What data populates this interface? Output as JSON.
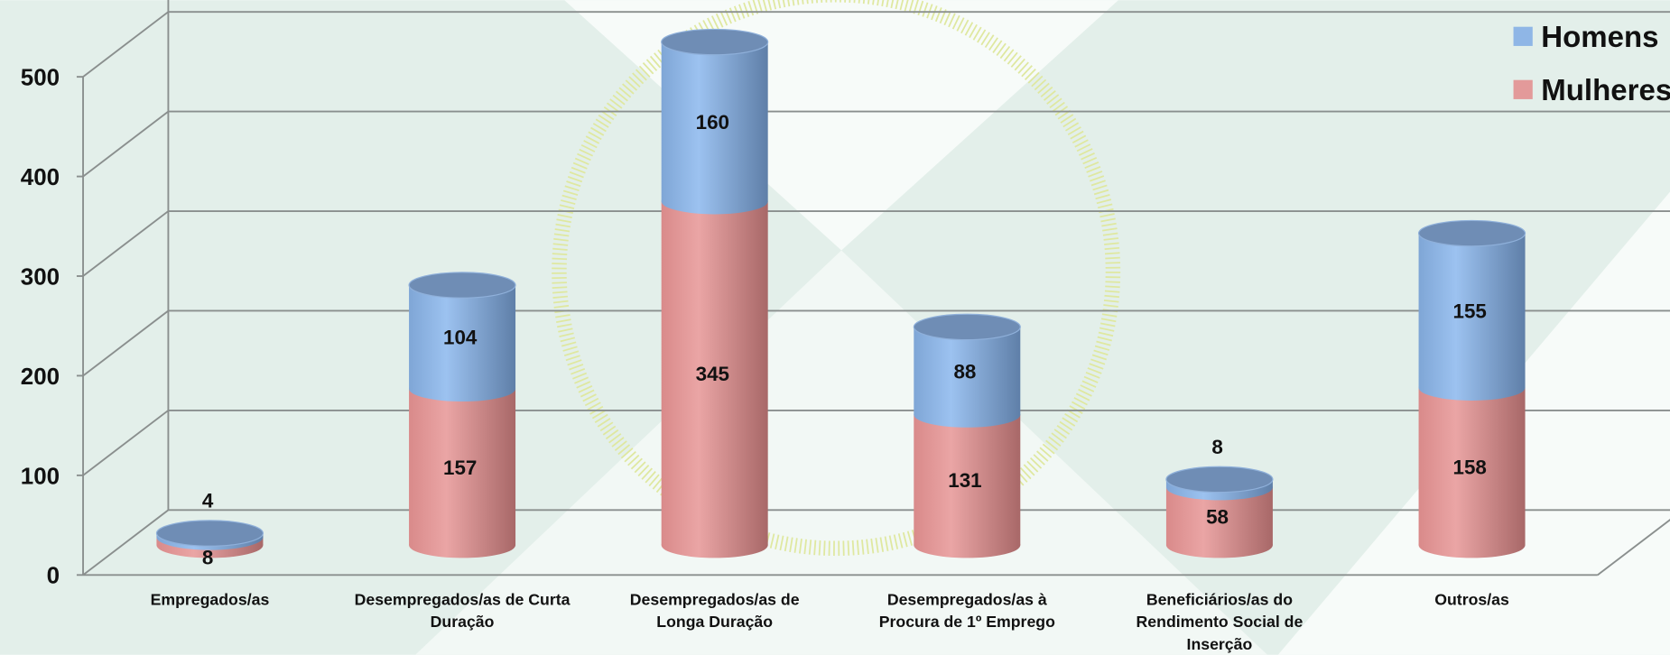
{
  "chart_data": {
    "type": "bar",
    "stacked": true,
    "three_d": true,
    "categories": [
      "Empregados/as",
      "Desempregados/as de Curta\nDuração",
      "Desempregados/as de\nLonga Duração",
      "Desempregados/as à\nProcura de 1º Emprego",
      "Beneficiários/as do\nRendimento Social de\nInserção",
      "Outros/as"
    ],
    "series": [
      {
        "name": "Mulheres",
        "color": "#e39a9a",
        "values": [
          8,
          157,
          345,
          131,
          58,
          158
        ]
      },
      {
        "name": "Homens",
        "color": "#8fb6e6",
        "values": [
          4,
          104,
          160,
          88,
          8,
          155
        ]
      }
    ],
    "ylim": [
      0,
      500
    ],
    "yticks": [
      0,
      100,
      200,
      300,
      400,
      500
    ],
    "grid": true,
    "legend": "top-right"
  }
}
